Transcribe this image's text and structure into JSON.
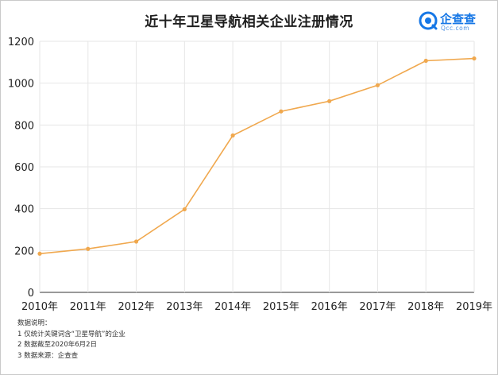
{
  "title": "近十年卫星导航相关企业注册情况",
  "logo": {
    "name": "企查查",
    "sub": "Qcc.com"
  },
  "notes": {
    "heading": "数据说明：",
    "items": [
      "1 仅统计关键词含“卫星导航”的企业",
      "2 数据截至2020年6月2日",
      "3 数据来源：企查查"
    ]
  },
  "colors": {
    "line": "#f0a84e",
    "grid": "#e6e6e6",
    "axis": "#333333",
    "brand": "#1677e6"
  },
  "chart_data": {
    "type": "line",
    "title": "近十年卫星导航相关企业注册情况",
    "xlabel": "",
    "ylabel": "",
    "categories": [
      "2010年",
      "2011年",
      "2012年",
      "2013年",
      "2014年",
      "2015年",
      "2016年",
      "2017年",
      "2018年",
      "2019年"
    ],
    "series": [
      {
        "values": [
          185,
          208,
          243,
          397,
          750,
          865,
          914,
          990,
          1107,
          1118
        ]
      }
    ],
    "ylim": [
      0,
      1200
    ],
    "yticks": [
      0,
      200,
      400,
      600,
      800,
      1000,
      1200
    ],
    "grid": true,
    "legend": "none"
  }
}
